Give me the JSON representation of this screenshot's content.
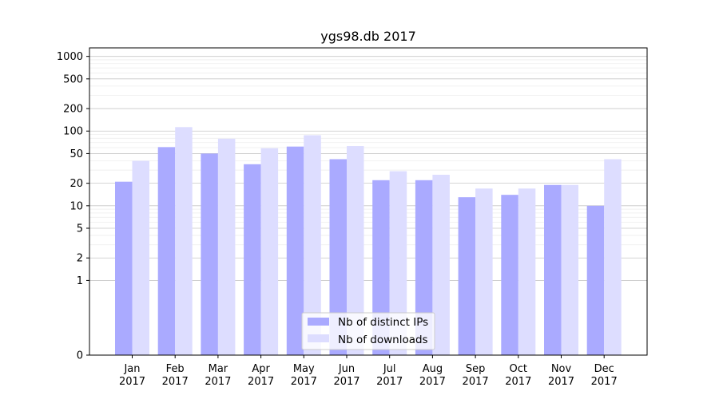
{
  "chart_data": {
    "type": "bar",
    "title": "ygs98.db 2017",
    "xlabel": "",
    "ylabel": "",
    "y_scale": "symlog",
    "ylim": [
      0,
      1300
    ],
    "y_ticks": [
      0,
      1,
      2,
      5,
      10,
      20,
      50,
      100,
      200,
      500,
      1000
    ],
    "y_tick_labels": [
      "0",
      "1",
      "2",
      "5",
      "10",
      "20",
      "50",
      "100",
      "200",
      "500",
      "1000"
    ],
    "grid": true,
    "legend_position": "lower-center",
    "categories": [
      [
        "Jan",
        "2017"
      ],
      [
        "Feb",
        "2017"
      ],
      [
        "Mar",
        "2017"
      ],
      [
        "Apr",
        "2017"
      ],
      [
        "May",
        "2017"
      ],
      [
        "Jun",
        "2017"
      ],
      [
        "Jul",
        "2017"
      ],
      [
        "Aug",
        "2017"
      ],
      [
        "Sep",
        "2017"
      ],
      [
        "Oct",
        "2017"
      ],
      [
        "Nov",
        "2017"
      ],
      [
        "Dec",
        "2017"
      ]
    ],
    "series": [
      {
        "name": "Nb of distinct IPs",
        "color": "#aaaaff",
        "values": [
          21,
          61,
          50,
          36,
          62,
          42,
          22,
          22,
          13,
          14,
          19,
          10
        ]
      },
      {
        "name": "Nb of downloads",
        "color": "#ddddff",
        "values": [
          40,
          113,
          79,
          59,
          88,
          63,
          29,
          26,
          17,
          17,
          19,
          42
        ]
      }
    ]
  }
}
